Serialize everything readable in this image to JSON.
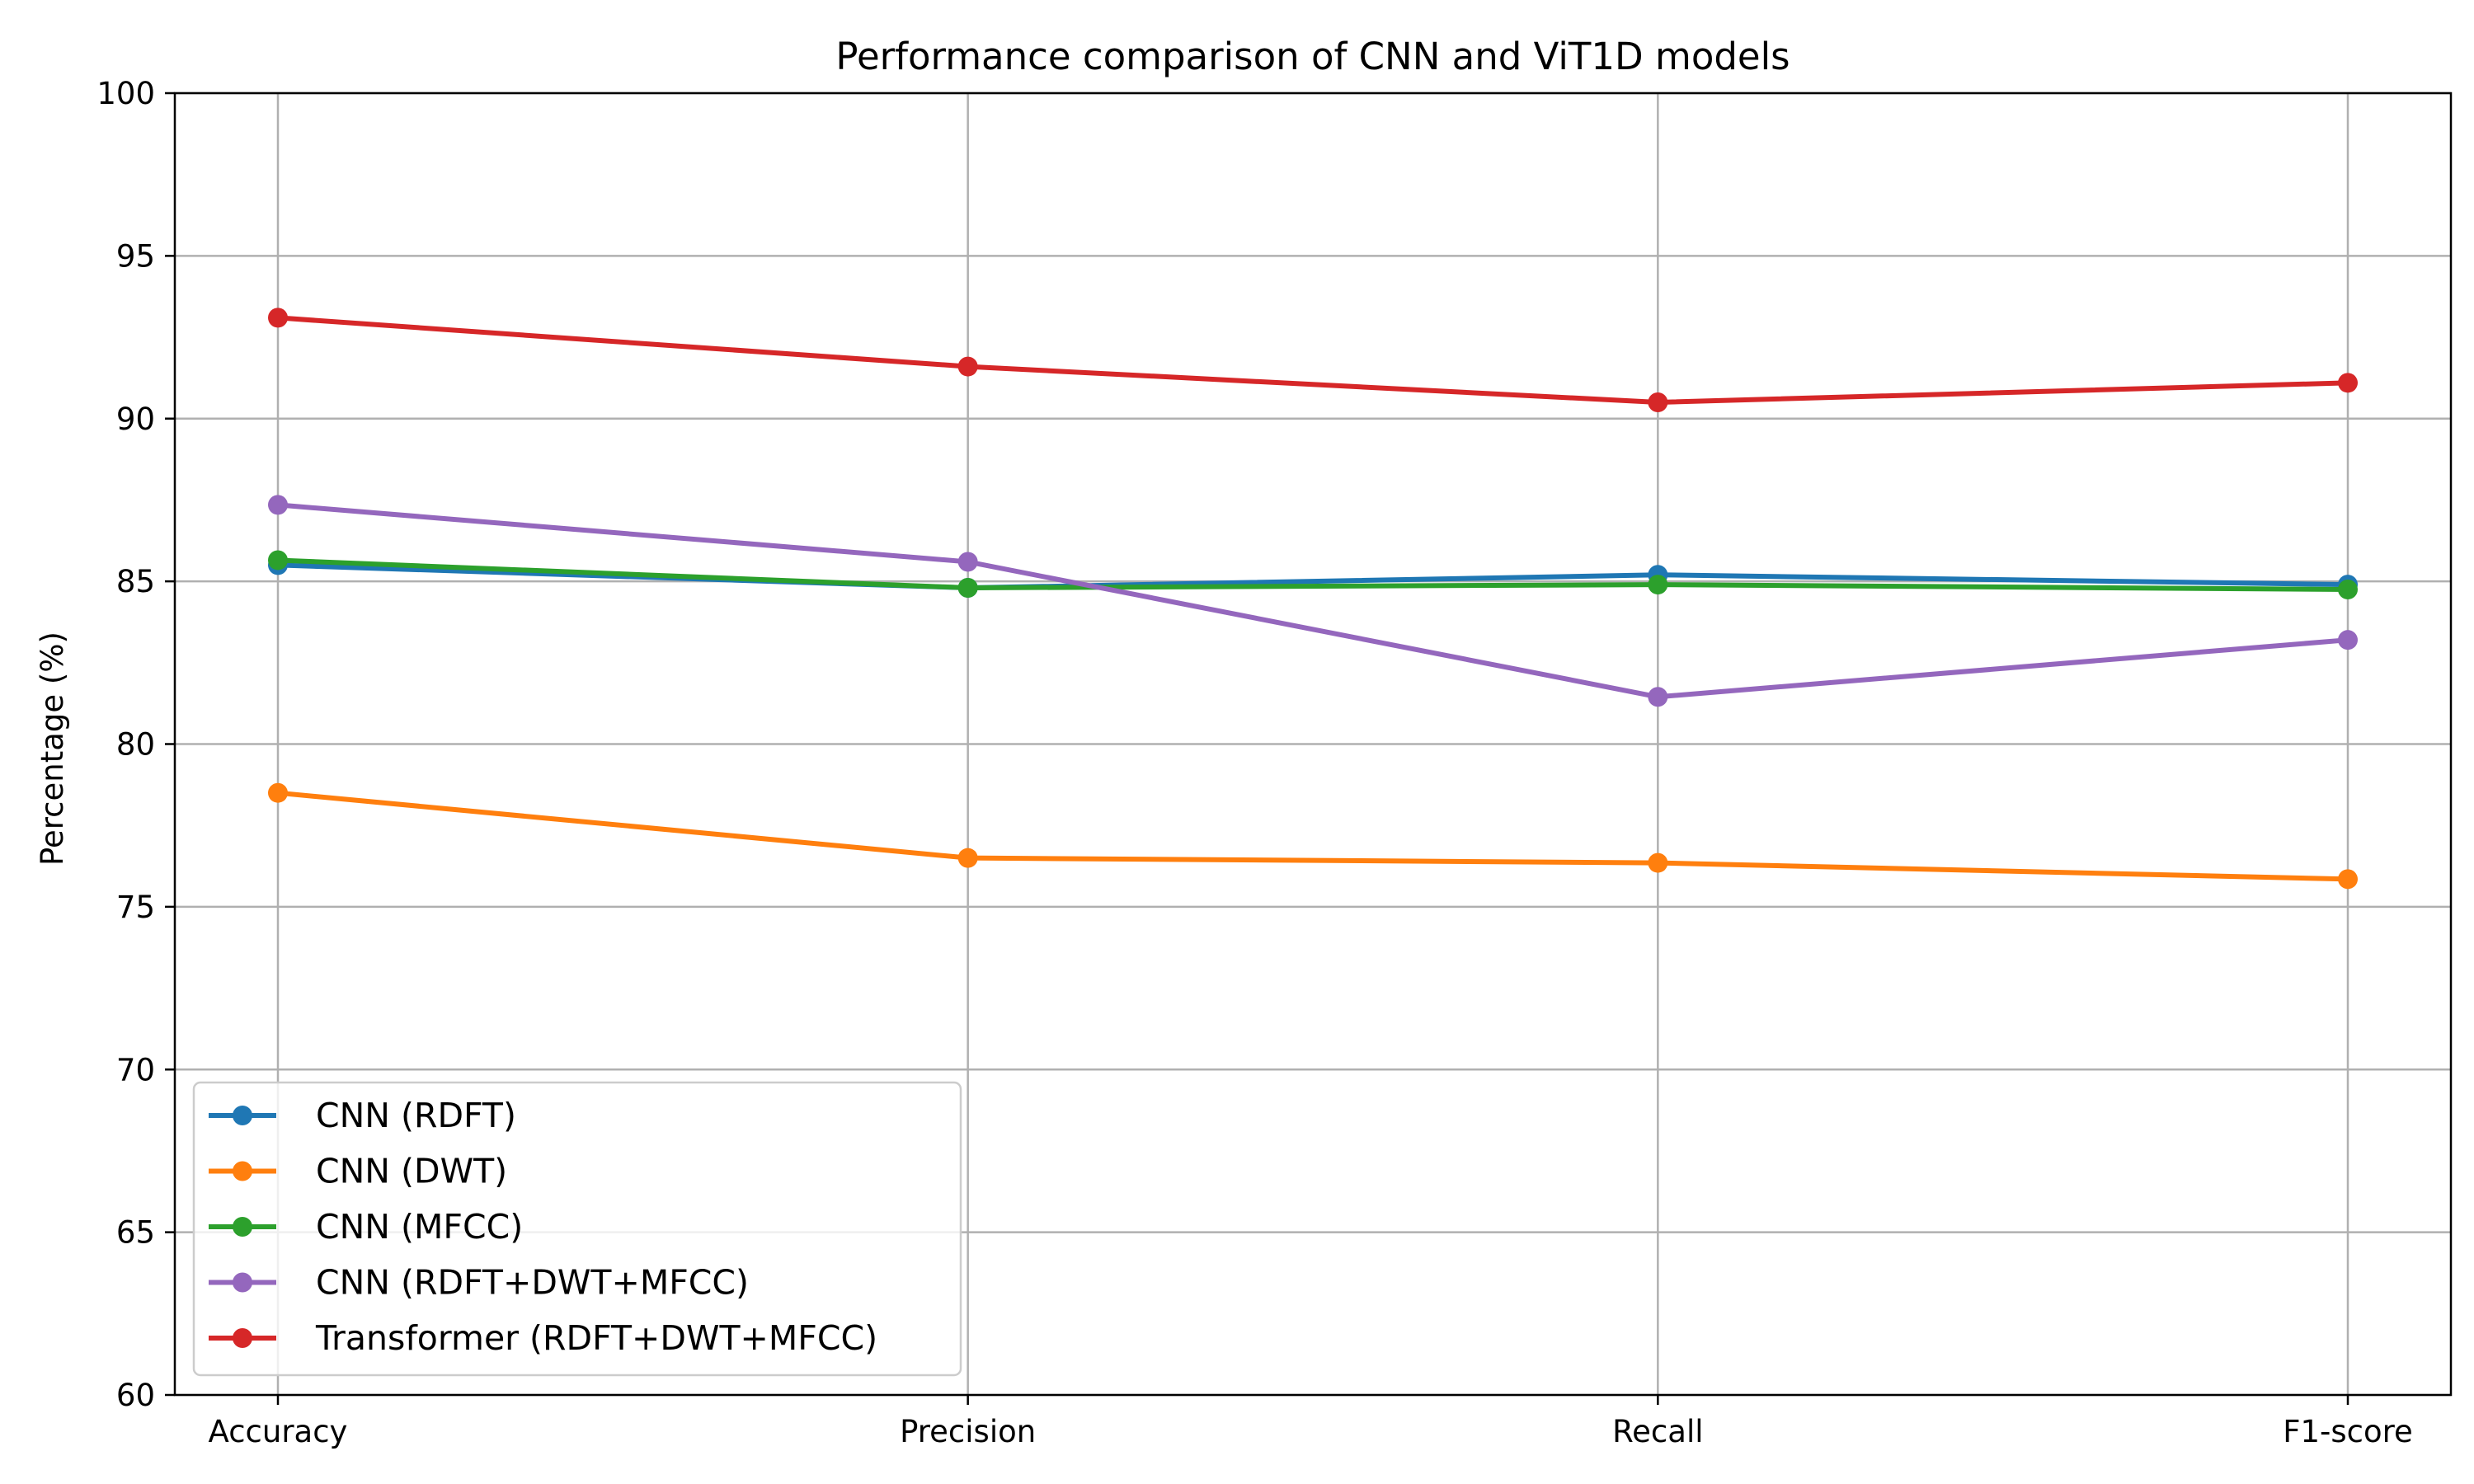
{
  "chart_data": {
    "type": "line",
    "title": "Performance comparison of CNN and ViT1D models",
    "xlabel": "",
    "ylabel": "Percentage (%)",
    "categories": [
      "Accuracy",
      "Precision",
      "Recall",
      "F1-score"
    ],
    "ylim": [
      60,
      100
    ],
    "yticks": [
      60,
      65,
      70,
      75,
      80,
      85,
      90,
      95,
      100
    ],
    "grid": true,
    "legend_position": "bottom-left",
    "series": [
      {
        "name": "CNN (RDFT)",
        "color": "#1f77b4",
        "values": [
          85.5,
          84.8,
          85.2,
          84.9
        ]
      },
      {
        "name": "CNN (DWT)",
        "color": "#ff7f0e",
        "values": [
          78.5,
          76.5,
          76.35,
          75.85
        ]
      },
      {
        "name": "CNN (MFCC)",
        "color": "#2ca02c",
        "values": [
          85.65,
          84.8,
          84.9,
          84.75
        ]
      },
      {
        "name": "CNN (RDFT+DWT+MFCC)",
        "color": "#9467bd",
        "values": [
          87.35,
          85.6,
          81.45,
          83.2
        ]
      },
      {
        "name": "Transformer (RDFT+DWT+MFCC)",
        "color": "#d62728",
        "values": [
          93.1,
          91.6,
          90.5,
          91.1
        ]
      }
    ]
  }
}
